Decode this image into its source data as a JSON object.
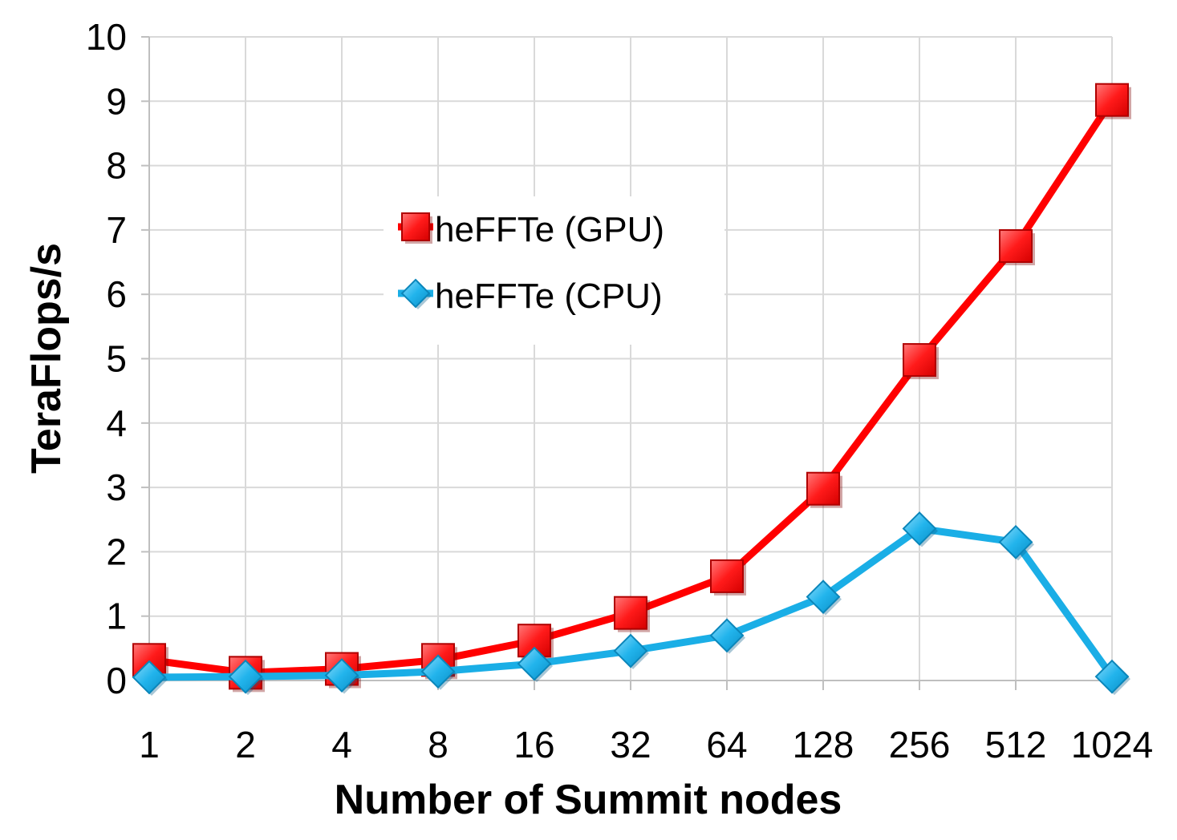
{
  "chart_data": {
    "type": "line",
    "categories": [
      "1",
      "2",
      "4",
      "8",
      "16",
      "32",
      "64",
      "128",
      "256",
      "512",
      "1024"
    ],
    "series": [
      {
        "name": "heFFTe (GPU)",
        "color": "#ff0000",
        "marker": "square",
        "values": [
          0.32,
          0.12,
          0.18,
          0.32,
          0.62,
          1.05,
          1.62,
          2.98,
          4.98,
          6.75,
          9.02
        ]
      },
      {
        "name": "heFFTe (CPU)",
        "color": "#1aaee6",
        "marker": "diamond",
        "values": [
          0.05,
          0.06,
          0.08,
          0.14,
          0.26,
          0.46,
          0.7,
          1.3,
          2.36,
          2.15,
          0.06
        ]
      }
    ],
    "xlabel": "Number of Summit nodes",
    "ylabel": "TeraFlops/s",
    "ylim": [
      0,
      10
    ],
    "yticks": [
      "0",
      "1",
      "2",
      "3",
      "4",
      "5",
      "6",
      "7",
      "8",
      "9",
      "10"
    ],
    "grid": true,
    "legend": "inside-top-center"
  }
}
